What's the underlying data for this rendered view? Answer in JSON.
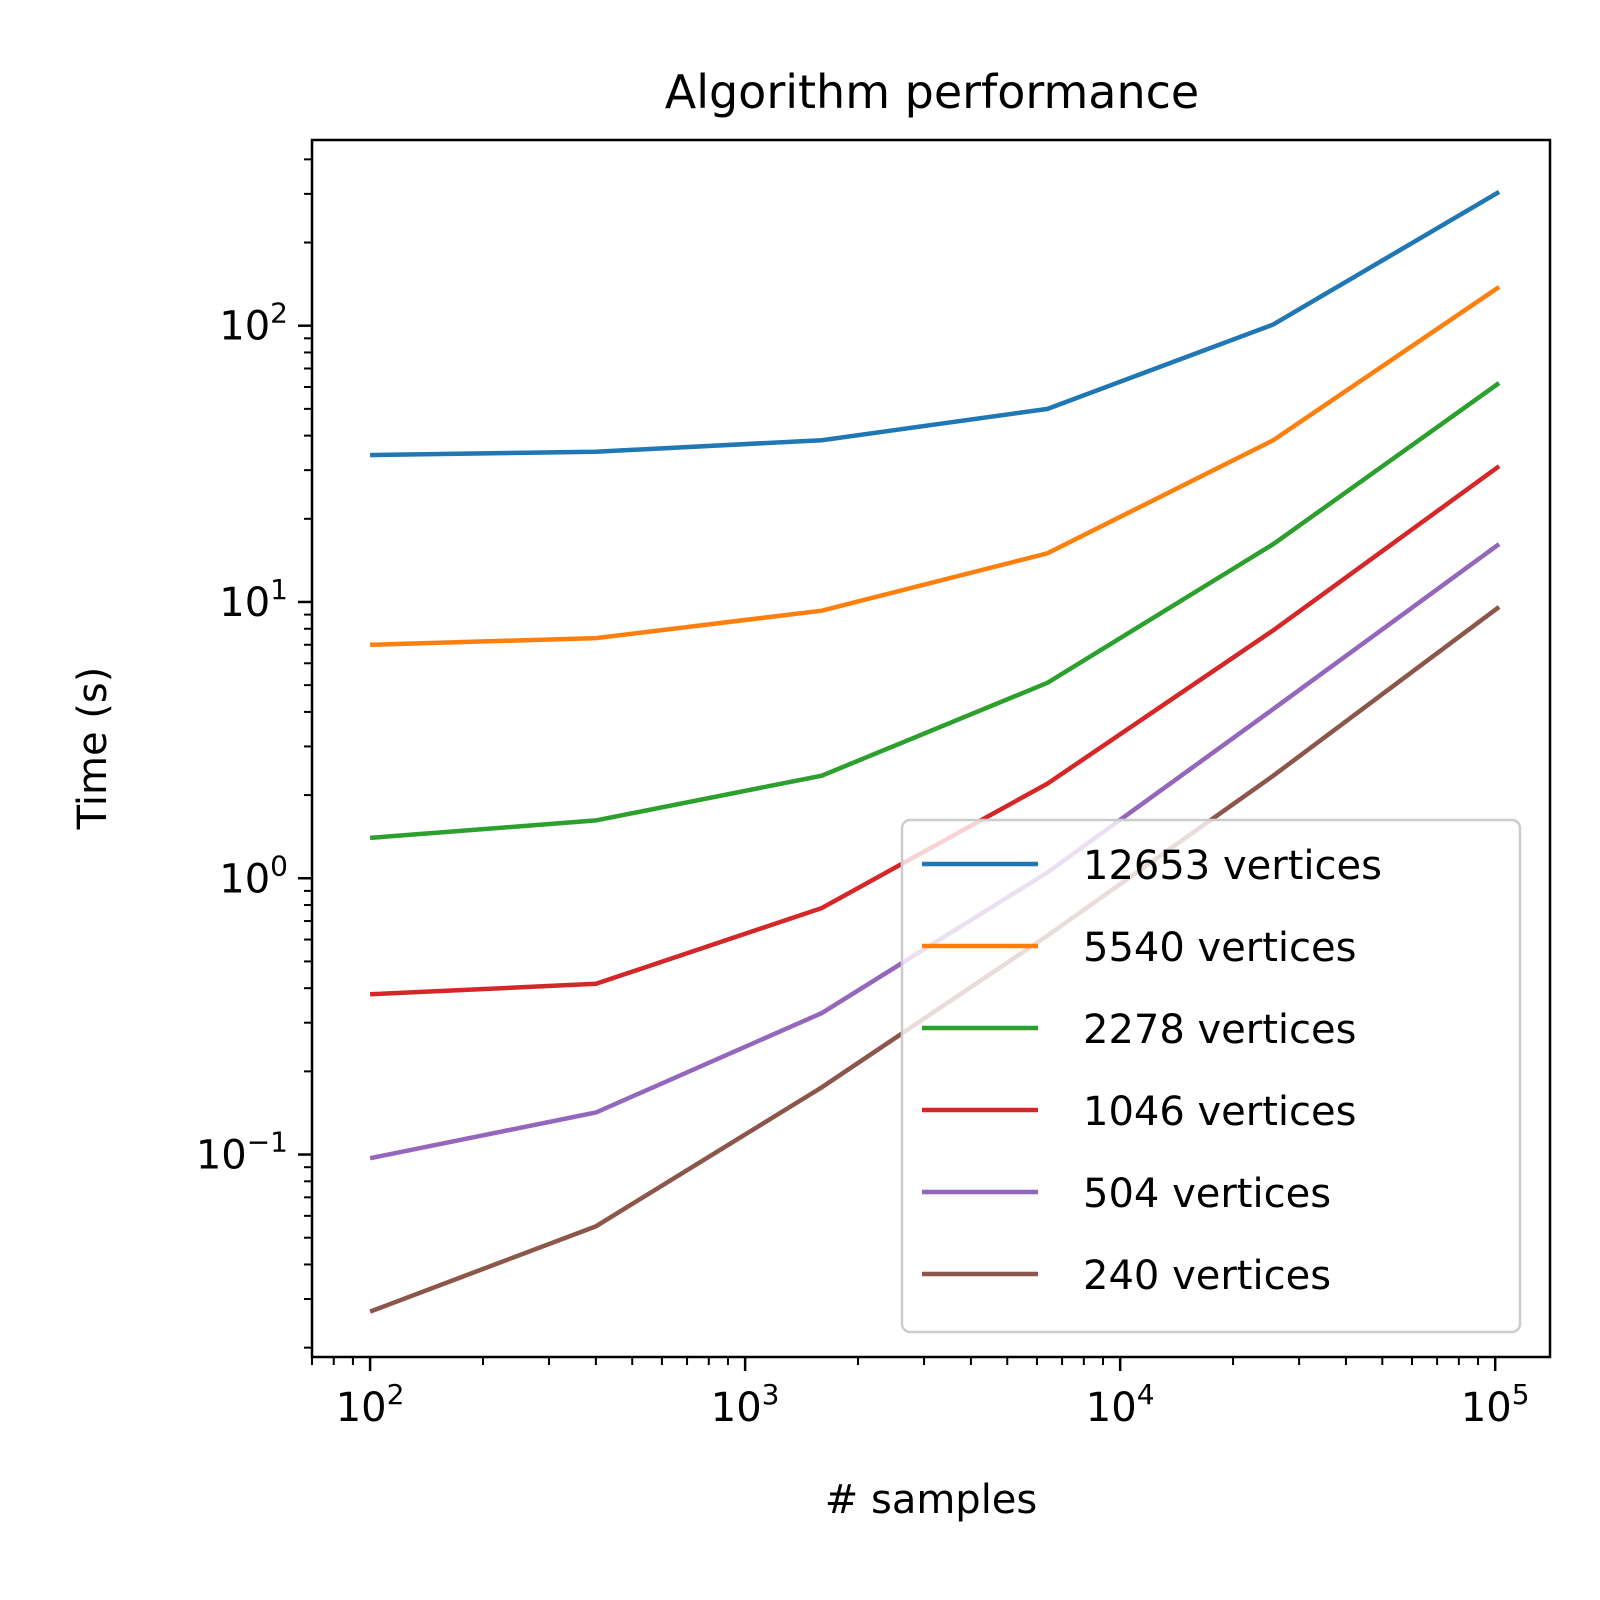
{
  "chart_data": {
    "type": "line",
    "title": "Algorithm performance",
    "xlabel": "# samples",
    "ylabel": "Time (s)",
    "x_scale": "log",
    "y_scale": "log",
    "xlim": [
      70,
      140000
    ],
    "ylim": [
      0.0185,
      470
    ],
    "x_ticks": [
      {
        "value": 100,
        "base": "10",
        "exp": "2"
      },
      {
        "value": 1000,
        "base": "10",
        "exp": "3"
      },
      {
        "value": 10000,
        "base": "10",
        "exp": "4"
      },
      {
        "value": 100000,
        "base": "10",
        "exp": "5"
      }
    ],
    "y_ticks": [
      {
        "value": 0.1,
        "base": "10",
        "exp": "−1"
      },
      {
        "value": 1,
        "base": "10",
        "exp": "0"
      },
      {
        "value": 10,
        "base": "10",
        "exp": "1"
      },
      {
        "value": 100,
        "base": "10",
        "exp": "2"
      }
    ],
    "grid": false,
    "legend_position": "lower-right",
    "x": [
      100,
      400,
      1600,
      6400,
      25600,
      102400
    ],
    "series": [
      {
        "name": "12653 vertices",
        "color": "#1f77b4",
        "values": [
          34,
          35,
          38.5,
          50,
          101,
          305
        ]
      },
      {
        "name": "5540 vertices",
        "color": "#ff7f0e",
        "values": [
          7.0,
          7.4,
          9.3,
          15,
          38.5,
          138
        ]
      },
      {
        "name": "2278 vertices",
        "color": "#2ca02c",
        "values": [
          1.4,
          1.62,
          2.35,
          5.1,
          16.2,
          62
        ]
      },
      {
        "name": "1046 vertices",
        "color": "#d62728",
        "values": [
          0.38,
          0.415,
          0.78,
          2.2,
          7.9,
          31
        ]
      },
      {
        "name": "504 vertices",
        "color": "#9467bd",
        "values": [
          0.097,
          0.142,
          0.325,
          1.05,
          4.1,
          16.2
        ]
      },
      {
        "name": "240 vertices",
        "color": "#8c564b",
        "values": [
          0.027,
          0.055,
          0.175,
          0.62,
          2.35,
          9.6
        ]
      }
    ]
  }
}
